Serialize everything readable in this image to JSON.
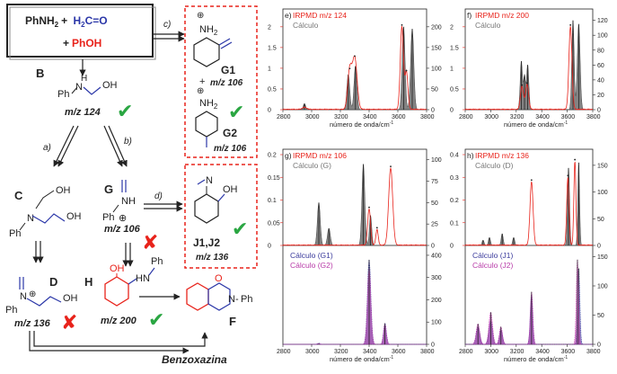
{
  "scheme": {
    "reagents": {
      "aniline": "PhNH",
      "aniline_sub": "2",
      "plus1": "+",
      "formaldehyde": "H",
      "form_sub": "2",
      "form_rest": "C=O",
      "plus2": "+",
      "phenol": "PhOH"
    },
    "step_labels": {
      "a": "a)",
      "b": "b)",
      "c": "c)",
      "d": "d)"
    },
    "B": {
      "letter": "B",
      "ph": "Ph",
      "n": "N",
      "h": "H",
      "oh": "OH",
      "mz": "m/z 124"
    },
    "C": {
      "letter": "C",
      "ph": "Ph",
      "n": "N",
      "oh1": "OH",
      "oh2": "OH"
    },
    "D": {
      "letter": "D",
      "ph": "Ph",
      "n": "N",
      "oh": "OH",
      "mz": "m/z 136"
    },
    "G": {
      "letter": "G",
      "ph": "Ph",
      "nh": "NH",
      "mz": "m/z 106"
    },
    "H": {
      "letter": "H",
      "oh": "OH",
      "hn": "HN",
      "ph": "Ph",
      "mz": "m/z 200"
    },
    "F": {
      "letter": "F",
      "o": "O",
      "n": "N",
      "ph": "Ph"
    },
    "G1": {
      "label": "G1",
      "nh2": "NH",
      "sub": "2",
      "mz": "m/z 106",
      "plus": "+"
    },
    "G2": {
      "label": "G2",
      "nh2": "NH",
      "sub": "2",
      "mz": "m/z 106"
    },
    "J": {
      "label": "J1,J2",
      "n": "N",
      "oh": "OH",
      "mz": "m/z 136"
    },
    "benzoxazina": "Benzoxazina",
    "check": "✔",
    "cross": "✘",
    "plus_charge": "⊕"
  },
  "chart_data": [
    {
      "panel": "e)",
      "title": "IRPMD m/z 124",
      "type": "line",
      "legend": [
        "IRPMD m/z 124",
        "Cálculo"
      ],
      "xlabel": "número de onda/cm",
      "xlabel_sup": "-1",
      "xlim": [
        2800,
        3800
      ],
      "xticks": [
        2800,
        3000,
        3200,
        3400,
        3600,
        3800
      ],
      "yleft": [
        0,
        0.5,
        1.0,
        1.5,
        2.0
      ],
      "yleft_lim": [
        0,
        2.3
      ],
      "yright": [
        0,
        50,
        100,
        150,
        200
      ],
      "yright_lim": [
        0,
        230
      ],
      "exp_peaks": [
        [
          2950,
          0.05,
          15
        ],
        [
          3265,
          0.95,
          14
        ],
        [
          3300,
          1.25,
          16
        ],
        [
          3628,
          2.0,
          11
        ],
        [
          3660,
          0.9,
          10
        ]
      ],
      "calc_peaks": [
        [
          2950,
          15,
          8
        ],
        [
          3255,
          85,
          10
        ],
        [
          3305,
          105,
          10
        ],
        [
          3640,
          200,
          10
        ],
        [
          3700,
          195,
          11
        ]
      ]
    },
    {
      "panel": "f)",
      "title": "IRPMD m/z 200",
      "type": "line",
      "legend": [
        "IRPMD m/z 200",
        "Cálculo"
      ],
      "xlabel": "número de onda/cm",
      "xlabel_sup": "-1",
      "xlim": [
        2800,
        3800
      ],
      "xticks": [
        2800,
        3000,
        3200,
        3400,
        3600,
        3800
      ],
      "yleft": [
        0,
        0.5,
        1.0,
        1.5,
        2.0
      ],
      "yleft_lim": [
        0,
        2.3
      ],
      "yright": [
        0,
        20,
        40,
        60,
        80,
        100,
        120
      ],
      "yright_lim": [
        0,
        128
      ],
      "exp_peaks": [
        [
          3245,
          0.55,
          12
        ],
        [
          3285,
          0.6,
          12
        ],
        [
          3625,
          2.0,
          12
        ]
      ],
      "calc_peaks": [
        [
          3240,
          65,
          9
        ],
        [
          3265,
          45,
          8
        ],
        [
          3290,
          60,
          9
        ],
        [
          3645,
          120,
          9
        ],
        [
          3690,
          115,
          11
        ]
      ]
    },
    {
      "panel": "g)",
      "title": "IRPMD m/z 106",
      "type": "line",
      "legend": [
        "IRPMD m/z 106",
        "Cálculo (G)",
        "Cálculo (G1)",
        "Cálculo (G2)"
      ],
      "xlabel": "número de onda/cm",
      "xlabel_sup": "-1",
      "xlim": [
        2800,
        3800
      ],
      "xticks": [
        2800,
        3000,
        3200,
        3400,
        3600,
        3800
      ],
      "yleft": [
        0,
        0.05,
        0.1,
        0.15,
        0.2
      ],
      "yleft_lim": [
        0,
        0.2
      ],
      "yright": [
        0,
        25,
        50,
        75,
        100
      ],
      "yright_lim": [
        0,
        106
      ],
      "lower_yright": [
        0,
        100,
        200,
        300,
        400
      ],
      "lower_ylim": [
        0,
        420
      ],
      "exp_peaks": [
        [
          3400,
          0.08,
          10
        ],
        [
          3455,
          0.035,
          8
        ],
        [
          3550,
          0.17,
          14
        ]
      ],
      "calc_peaks": [
        [
          3050,
          50,
          10
        ],
        [
          3120,
          20,
          10
        ],
        [
          3360,
          95,
          10
        ],
        [
          3410,
          35,
          8
        ]
      ],
      "lower_G1": [
        [
          3050,
          5,
          10
        ],
        [
          3400,
          380,
          12
        ],
        [
          3510,
          95,
          10
        ]
      ],
      "lower_G2": [
        [
          3050,
          3,
          10
        ],
        [
          3400,
          340,
          12
        ],
        [
          3510,
          90,
          10
        ]
      ]
    },
    {
      "panel": "h)",
      "title": "IRPMD m/z 136",
      "type": "line",
      "legend": [
        "IRPMD m/z 136",
        "Cálculo (D)",
        "Cálculo (J1)",
        "Cálculo (J2)"
      ],
      "xlabel": "número de onda/cm",
      "xlabel_sup": "-1",
      "xlim": [
        2800,
        3800
      ],
      "xticks": [
        2800,
        3000,
        3200,
        3400,
        3600,
        3800
      ],
      "yleft": [
        0,
        0.1,
        0.2,
        0.3,
        0.4
      ],
      "yleft_lim": [
        0,
        0.4
      ],
      "yright": [
        0,
        50,
        100,
        150
      ],
      "yright_lim": [
        0,
        170
      ],
      "lower_yright": [
        0,
        50,
        100,
        150
      ],
      "lower_ylim": [
        0,
        160
      ],
      "exp_peaks": [
        [
          3320,
          0.28,
          12
        ],
        [
          3605,
          0.3,
          9
        ],
        [
          3660,
          0.37,
          8
        ]
      ],
      "calc_peaks": [
        [
          2940,
          10,
          8
        ],
        [
          2990,
          15,
          8
        ],
        [
          3090,
          22,
          8
        ],
        [
          3180,
          15,
          8
        ],
        [
          3610,
          145,
          8
        ],
        [
          3690,
          155,
          7
        ]
      ],
      "lower_J1": [
        [
          2900,
          30,
          14
        ],
        [
          3000,
          40,
          14
        ],
        [
          3080,
          25,
          12
        ],
        [
          3320,
          85,
          10
        ],
        [
          3690,
          130,
          9
        ]
      ],
      "lower_J2": [
        [
          2900,
          35,
          14
        ],
        [
          3000,
          55,
          14
        ],
        [
          3080,
          30,
          12
        ],
        [
          3320,
          90,
          10
        ],
        [
          3680,
          145,
          9
        ]
      ]
    }
  ],
  "colors": {
    "red": "#e8231b",
    "blue": "#2b37a8",
    "green": "#2aa642",
    "gray": "#6d6d6d",
    "calcG1": "#3b3b9c",
    "calcG2": "#b83ba8"
  }
}
